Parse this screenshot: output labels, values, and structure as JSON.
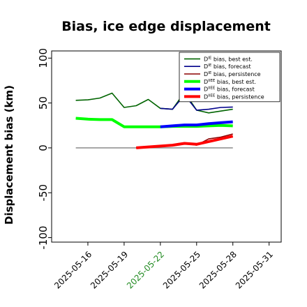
{
  "chart_data": {
    "type": "line",
    "title": "Bias, ice edge displacement",
    "ylabel": "Displacement bias (km)",
    "xlabel": "",
    "ylim": [
      -105,
      108
    ],
    "yticks": [
      -100,
      -50,
      0,
      50,
      100
    ],
    "xlim": [
      "2025-05-13",
      "2025-06-01"
    ],
    "xticks": [
      "2025-05-16",
      "2025-05-19",
      "2025-05-22",
      "2025-05-25",
      "2025-05-28",
      "2025-05-31"
    ],
    "highlighted_xtick": "2025-05-22",
    "highlight_color": "#228b22",
    "grid": false,
    "legend_position": "upper right",
    "zero_line_color": "#808080",
    "series": [
      {
        "name": "D^IE bias, best est.",
        "color": "#006400",
        "width": 1.6,
        "x": [
          "2025-05-15",
          "2025-05-16",
          "2025-05-17",
          "2025-05-18",
          "2025-05-19",
          "2025-05-20",
          "2025-05-21",
          "2025-05-22",
          "2025-05-23",
          "2025-05-24",
          "2025-05-25",
          "2025-05-26",
          "2025-05-27",
          "2025-05-28"
        ],
        "values": [
          53,
          53.5,
          55.5,
          61,
          45,
          47,
          54,
          44,
          43,
          62,
          42,
          39,
          41,
          43
        ]
      },
      {
        "name": "D^IE bias, forecast",
        "color": "#00008b",
        "width": 1.6,
        "x": [
          "2025-05-22",
          "2025-05-23",
          "2025-05-24",
          "2025-05-25",
          "2025-05-26",
          "2025-05-27",
          "2025-05-28"
        ],
        "values": [
          44,
          43,
          59,
          42,
          43,
          45,
          45.5
        ]
      },
      {
        "name": "D^IE bias, persistence",
        "color": "#8b0000",
        "width": 1.6,
        "x": [
          "2025-05-20",
          "2025-05-21",
          "2025-05-22",
          "2025-05-23",
          "2025-05-24",
          "2025-05-25",
          "2025-05-26",
          "2025-05-27",
          "2025-05-28"
        ],
        "values": [
          0,
          0.5,
          1.5,
          2.5,
          5,
          3,
          10,
          12,
          15.5
        ]
      },
      {
        "name": "D^IIEE bias, best est.",
        "color": "#00ff00",
        "width": 4,
        "x": [
          "2025-05-15",
          "2025-05-16",
          "2025-05-17",
          "2025-05-18",
          "2025-05-19",
          "2025-05-20",
          "2025-05-21",
          "2025-05-22",
          "2025-05-23",
          "2025-05-24",
          "2025-05-25",
          "2025-05-26",
          "2025-05-27",
          "2025-05-28"
        ],
        "values": [
          33,
          32,
          31.5,
          31.5,
          23.5,
          23.5,
          23.5,
          23.5,
          24,
          24,
          24,
          24.5,
          25,
          24.5
        ]
      },
      {
        "name": "D^IIEE bias, forecast",
        "color": "#0000ff",
        "width": 4,
        "x": [
          "2025-05-22",
          "2025-05-23",
          "2025-05-24",
          "2025-05-25",
          "2025-05-26",
          "2025-05-27",
          "2025-05-28"
        ],
        "values": [
          23.5,
          24.5,
          25.5,
          25.5,
          27,
          28,
          29
        ]
      },
      {
        "name": "D^IIEE bias, persistence",
        "color": "#ff0000",
        "width": 4,
        "x": [
          "2025-05-20",
          "2025-05-21",
          "2025-05-22",
          "2025-05-23",
          "2025-05-24",
          "2025-05-25",
          "2025-05-26",
          "2025-05-27",
          "2025-05-28"
        ],
        "values": [
          0,
          1,
          2,
          3,
          5,
          4,
          7,
          10,
          13
        ]
      }
    ],
    "legend": [
      {
        "base": "D",
        "sup": "IE",
        "rest": " bias, best est.",
        "color": "#006400",
        "width": 1.6
      },
      {
        "base": "D",
        "sup": "IE",
        "rest": " bias, forecast",
        "color": "#00008b",
        "width": 1.6
      },
      {
        "base": "D",
        "sup": "IE",
        "rest": " bias, persistence",
        "color": "#8b0000",
        "width": 1.6
      },
      {
        "base": "D",
        "sup": "IIEE",
        "rest": " bias, best est.",
        "color": "#00ff00",
        "width": 4
      },
      {
        "base": "D",
        "sup": "IIEE",
        "rest": " bias, forecast",
        "color": "#0000ff",
        "width": 4
      },
      {
        "base": "D",
        "sup": "IIEE",
        "rest": " bias, persistence",
        "color": "#ff0000",
        "width": 4
      }
    ]
  }
}
